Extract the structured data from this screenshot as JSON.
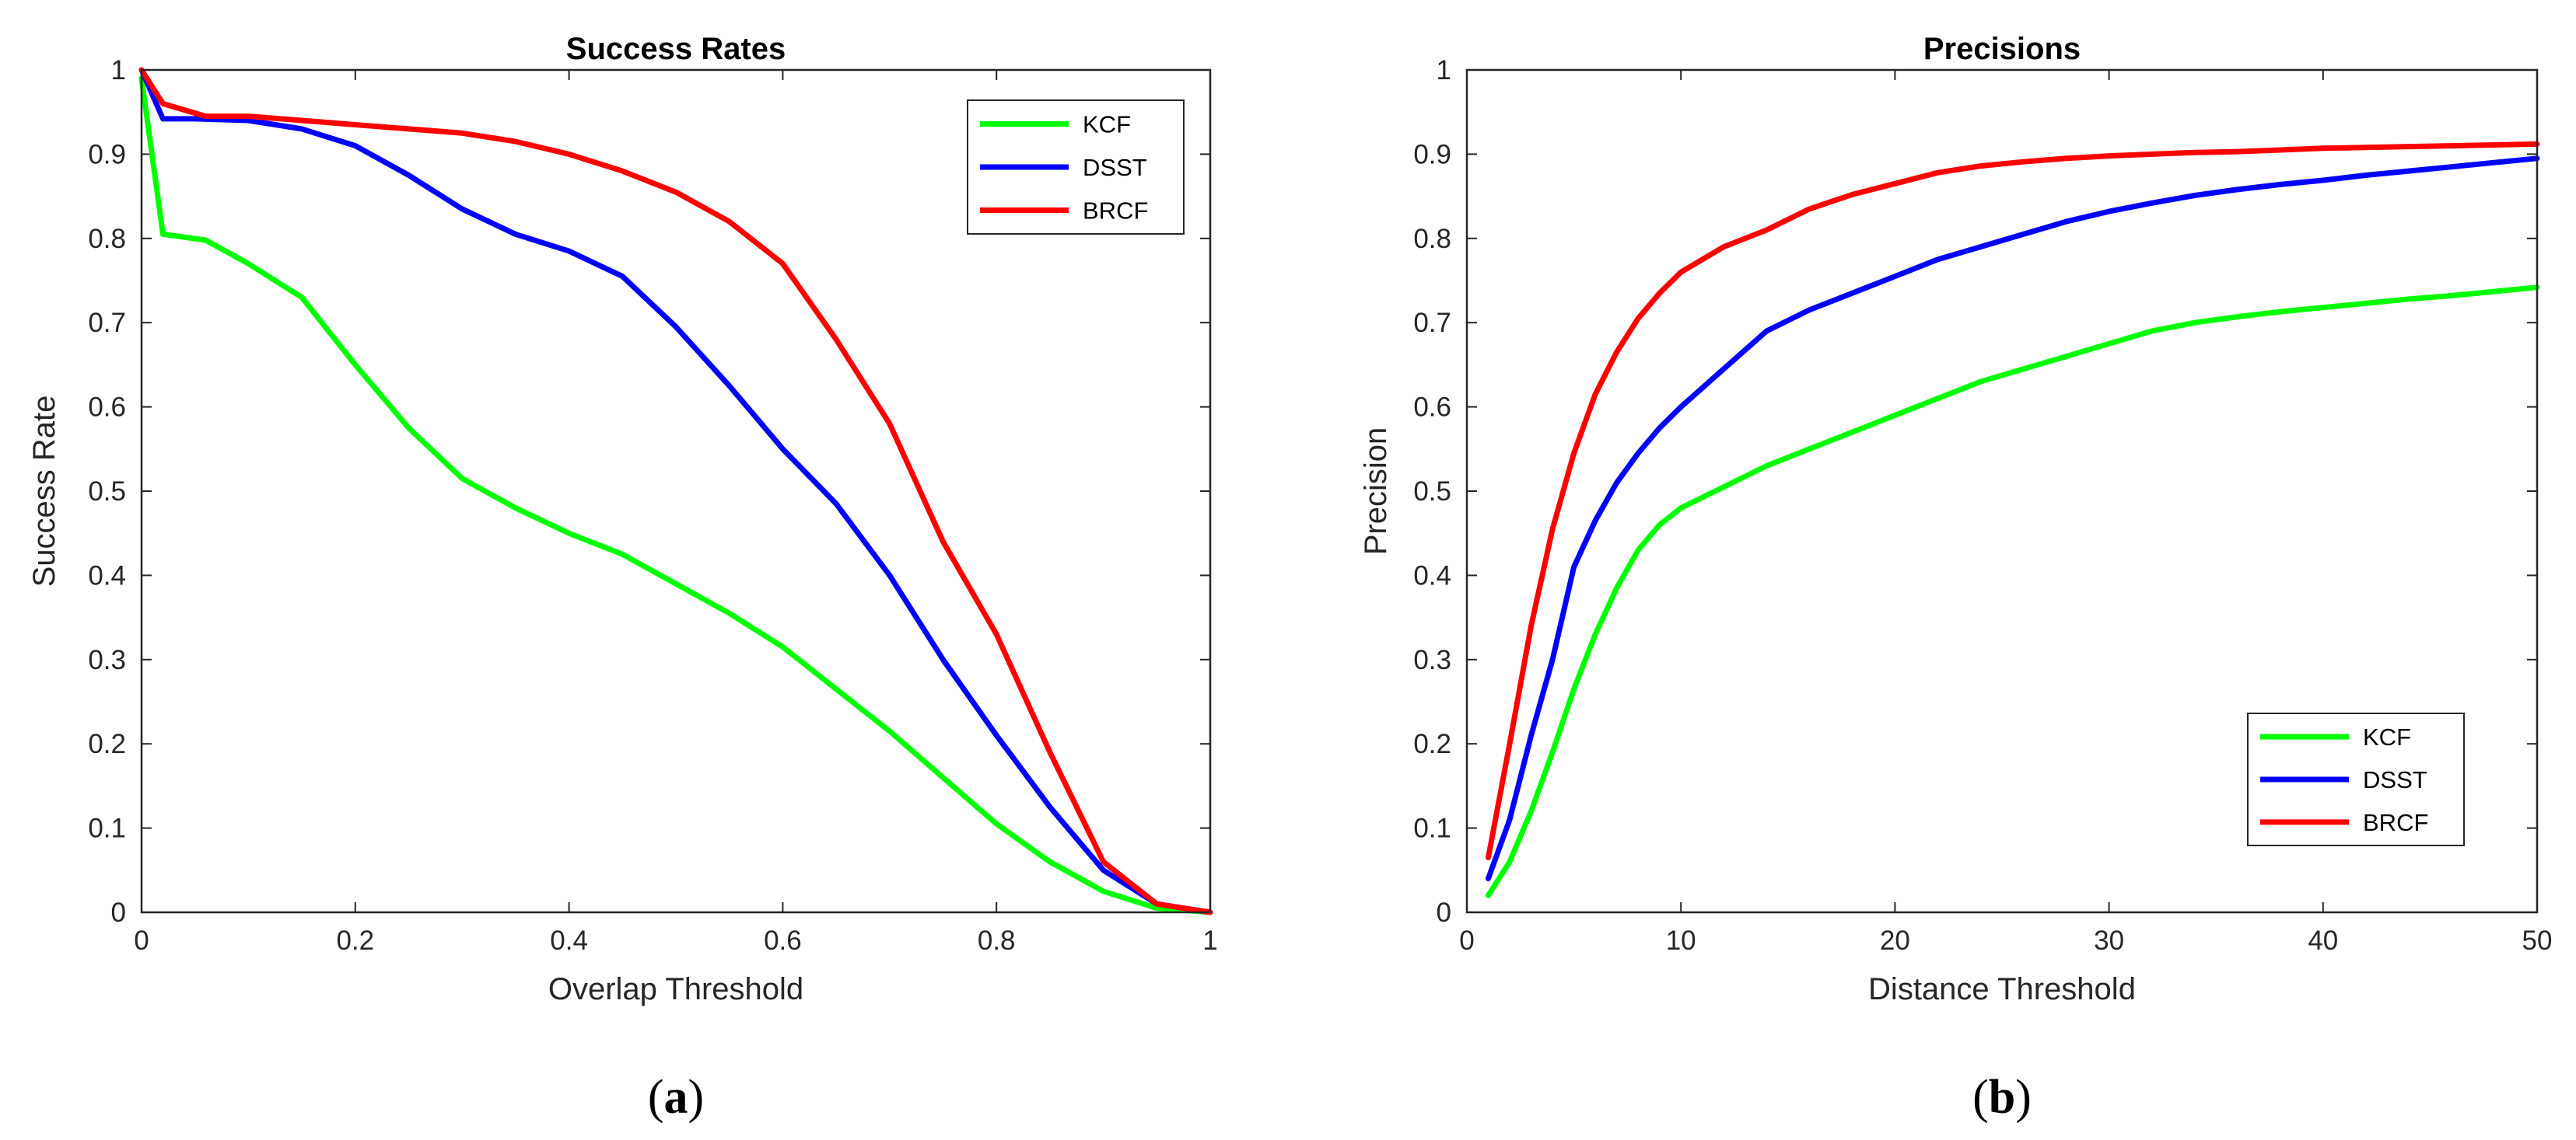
{
  "chart_data": [
    {
      "type": "line",
      "title": "Success Rates",
      "xlabel": "Overlap Threshold",
      "ylabel": "Success Rate",
      "xlim": [
        0,
        1
      ],
      "ylim": [
        0,
        1
      ],
      "xticks": [
        "0",
        "0.2",
        "0.4",
        "0.6",
        "0.8",
        "1"
      ],
      "yticks": [
        "0",
        "0.1",
        "0.2",
        "0.3",
        "0.4",
        "0.5",
        "0.6",
        "0.7",
        "0.8",
        "0.9",
        "1"
      ],
      "legend_position": "top-right",
      "caption": "(a)",
      "caption_bold": "a",
      "series": [
        {
          "name": "KCF",
          "color": "#00ff00",
          "x": [
            0,
            0.02,
            0.06,
            0.1,
            0.15,
            0.2,
            0.25,
            0.3,
            0.35,
            0.4,
            0.45,
            0.5,
            0.55,
            0.6,
            0.65,
            0.7,
            0.75,
            0.8,
            0.85,
            0.9,
            0.95,
            1.0
          ],
          "y": [
            0.99,
            0.805,
            0.798,
            0.77,
            0.73,
            0.65,
            0.575,
            0.515,
            0.48,
            0.45,
            0.425,
            0.39,
            0.355,
            0.315,
            0.265,
            0.215,
            0.16,
            0.105,
            0.06,
            0.025,
            0.005,
            0
          ]
        },
        {
          "name": "DSST",
          "color": "#0000ff",
          "x": [
            0,
            0.02,
            0.05,
            0.1,
            0.15,
            0.2,
            0.25,
            0.3,
            0.35,
            0.4,
            0.45,
            0.5,
            0.55,
            0.6,
            0.65,
            0.7,
            0.75,
            0.8,
            0.85,
            0.9,
            0.95,
            1.0
          ],
          "y": [
            1.0,
            0.942,
            0.942,
            0.94,
            0.93,
            0.91,
            0.875,
            0.835,
            0.805,
            0.785,
            0.755,
            0.695,
            0.625,
            0.55,
            0.485,
            0.4,
            0.3,
            0.21,
            0.125,
            0.05,
            0.01,
            0
          ]
        },
        {
          "name": "BRCF",
          "color": "#ff0000",
          "x": [
            0,
            0.02,
            0.06,
            0.1,
            0.15,
            0.2,
            0.25,
            0.3,
            0.35,
            0.4,
            0.45,
            0.5,
            0.55,
            0.6,
            0.65,
            0.7,
            0.75,
            0.8,
            0.85,
            0.9,
            0.95,
            1.0
          ],
          "y": [
            1.0,
            0.96,
            0.945,
            0.945,
            0.94,
            0.935,
            0.93,
            0.925,
            0.915,
            0.9,
            0.88,
            0.855,
            0.82,
            0.77,
            0.68,
            0.58,
            0.44,
            0.33,
            0.19,
            0.06,
            0.01,
            0
          ]
        }
      ]
    },
    {
      "type": "line",
      "title": "Precisions",
      "xlabel": "Distance Threshold",
      "ylabel": "Precision",
      "xlim": [
        0,
        50
      ],
      "ylim": [
        0,
        1
      ],
      "xticks": [
        "0",
        "10",
        "20",
        "30",
        "40",
        "50"
      ],
      "yticks": [
        "0",
        "0.1",
        "0.2",
        "0.3",
        "0.4",
        "0.5",
        "0.6",
        "0.7",
        "0.8",
        "0.9",
        "1"
      ],
      "legend_position": "bottom-right",
      "caption": "(b)",
      "caption_bold": "b",
      "series": [
        {
          "name": "KCF",
          "color": "#00ff00",
          "x": [
            1,
            2,
            3,
            4,
            5,
            6,
            7,
            8,
            9,
            10,
            12,
            14,
            16,
            18,
            20,
            22,
            24,
            26,
            28,
            30,
            32,
            34,
            36,
            38,
            40,
            42,
            44,
            46,
            48,
            50
          ],
          "y": [
            0.02,
            0.06,
            0.12,
            0.19,
            0.265,
            0.33,
            0.385,
            0.43,
            0.46,
            0.48,
            0.505,
            0.53,
            0.55,
            0.57,
            0.59,
            0.61,
            0.63,
            0.645,
            0.66,
            0.675,
            0.69,
            0.7,
            0.707,
            0.713,
            0.718,
            0.723,
            0.728,
            0.732,
            0.737,
            0.742
          ]
        },
        {
          "name": "DSST",
          "color": "#0000ff",
          "x": [
            1,
            2,
            3,
            4,
            5,
            6,
            7,
            8,
            9,
            10,
            12,
            14,
            16,
            18,
            20,
            22,
            24,
            26,
            28,
            30,
            32,
            34,
            36,
            38,
            40,
            42,
            44,
            46,
            48,
            50
          ],
          "y": [
            0.04,
            0.11,
            0.21,
            0.3,
            0.41,
            0.465,
            0.51,
            0.545,
            0.575,
            0.6,
            0.645,
            0.69,
            0.715,
            0.735,
            0.755,
            0.775,
            0.79,
            0.805,
            0.82,
            0.832,
            0.842,
            0.851,
            0.858,
            0.864,
            0.869,
            0.875,
            0.88,
            0.885,
            0.89,
            0.895
          ]
        },
        {
          "name": "BRCF",
          "color": "#ff0000",
          "x": [
            1,
            2,
            3,
            4,
            5,
            6,
            7,
            8,
            9,
            10,
            12,
            14,
            16,
            18,
            20,
            22,
            24,
            26,
            28,
            30,
            32,
            34,
            36,
            38,
            40,
            42,
            44,
            46,
            48,
            50
          ],
          "y": [
            0.065,
            0.2,
            0.34,
            0.455,
            0.545,
            0.615,
            0.665,
            0.705,
            0.735,
            0.76,
            0.79,
            0.81,
            0.835,
            0.852,
            0.865,
            0.878,
            0.886,
            0.891,
            0.895,
            0.898,
            0.9,
            0.902,
            0.903,
            0.905,
            0.907,
            0.908,
            0.909,
            0.91,
            0.911,
            0.912
          ]
        }
      ]
    }
  ]
}
